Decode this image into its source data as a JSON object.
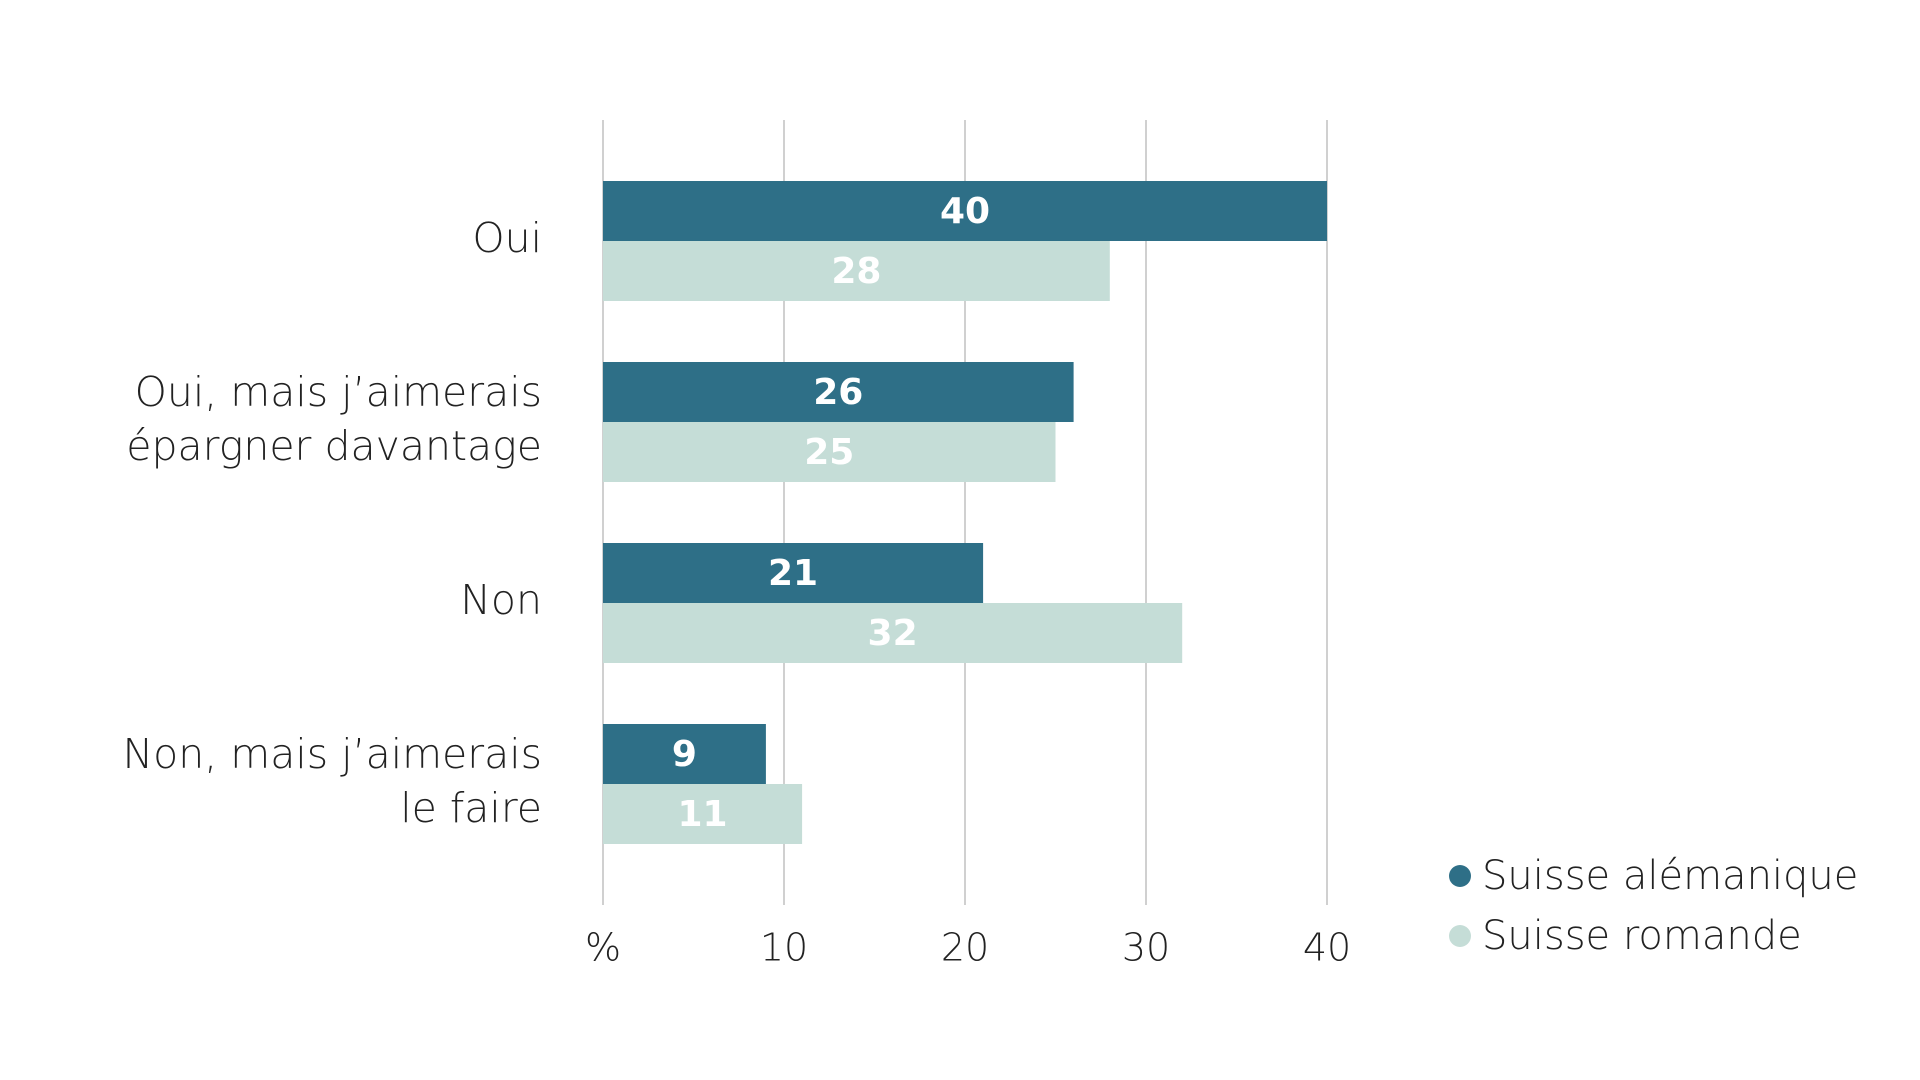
{
  "colors": {
    "series_1": "#2e6f87",
    "series_2": "#c5ddd7",
    "grid": "#d0d0d0",
    "text": "#222222",
    "bar_label": "#ffffff"
  },
  "chart_data": {
    "type": "bar",
    "orientation": "horizontal",
    "categories": [
      [
        "Oui"
      ],
      [
        "Oui, mais j’aimerais",
        "épargner davantage"
      ],
      [
        "Non"
      ],
      [
        "Non, mais j’aimerais",
        "le faire"
      ]
    ],
    "series": [
      {
        "name": "Suisse alémanique",
        "values": [
          40,
          26,
          21,
          9
        ]
      },
      {
        "name": "Suisse romande",
        "values": [
          28,
          25,
          32,
          11
        ]
      }
    ],
    "xlim": [
      0,
      40
    ],
    "xticks": [
      "%",
      "10",
      "20",
      "30",
      "40"
    ],
    "grid": true,
    "legend_position": "bottom-right",
    "data_labels": true
  }
}
